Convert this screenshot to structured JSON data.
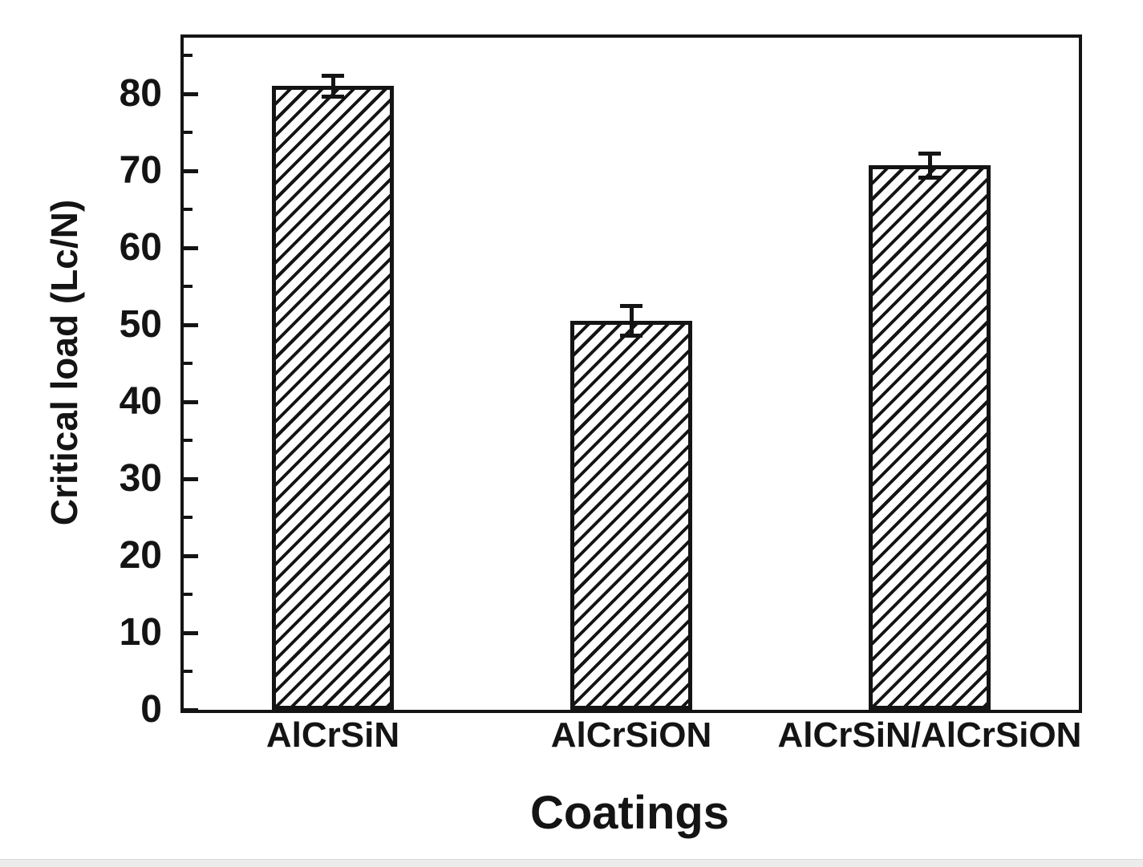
{
  "figure": {
    "background": "#ffffff",
    "axis_color": "#141414",
    "text_color": "#141414",
    "bottom_strip_color": "#ececec"
  },
  "chart_data": {
    "type": "bar",
    "title": "",
    "xlabel": "Coatings",
    "ylabel": "Critical load (Lc/N)",
    "categories": [
      "AlCrSiN",
      "AlCrSiON",
      "AlCrSiN/AlCrSiON"
    ],
    "values": [
      81,
      50.5,
      70.7
    ],
    "errors": [
      1.6,
      2.2,
      1.8
    ],
    "ylim": [
      0,
      87.3
    ],
    "yticks_major": [
      0,
      10,
      20,
      30,
      40,
      50,
      60,
      70,
      80
    ],
    "yticks_minor": [
      5,
      15,
      25,
      35,
      45,
      55,
      65,
      75,
      85
    ],
    "grid": false,
    "legend": false,
    "bar_fill": "diagonal-hatch-forward-slash",
    "bar_color": "#141414",
    "bar_background": "#ffffff"
  }
}
